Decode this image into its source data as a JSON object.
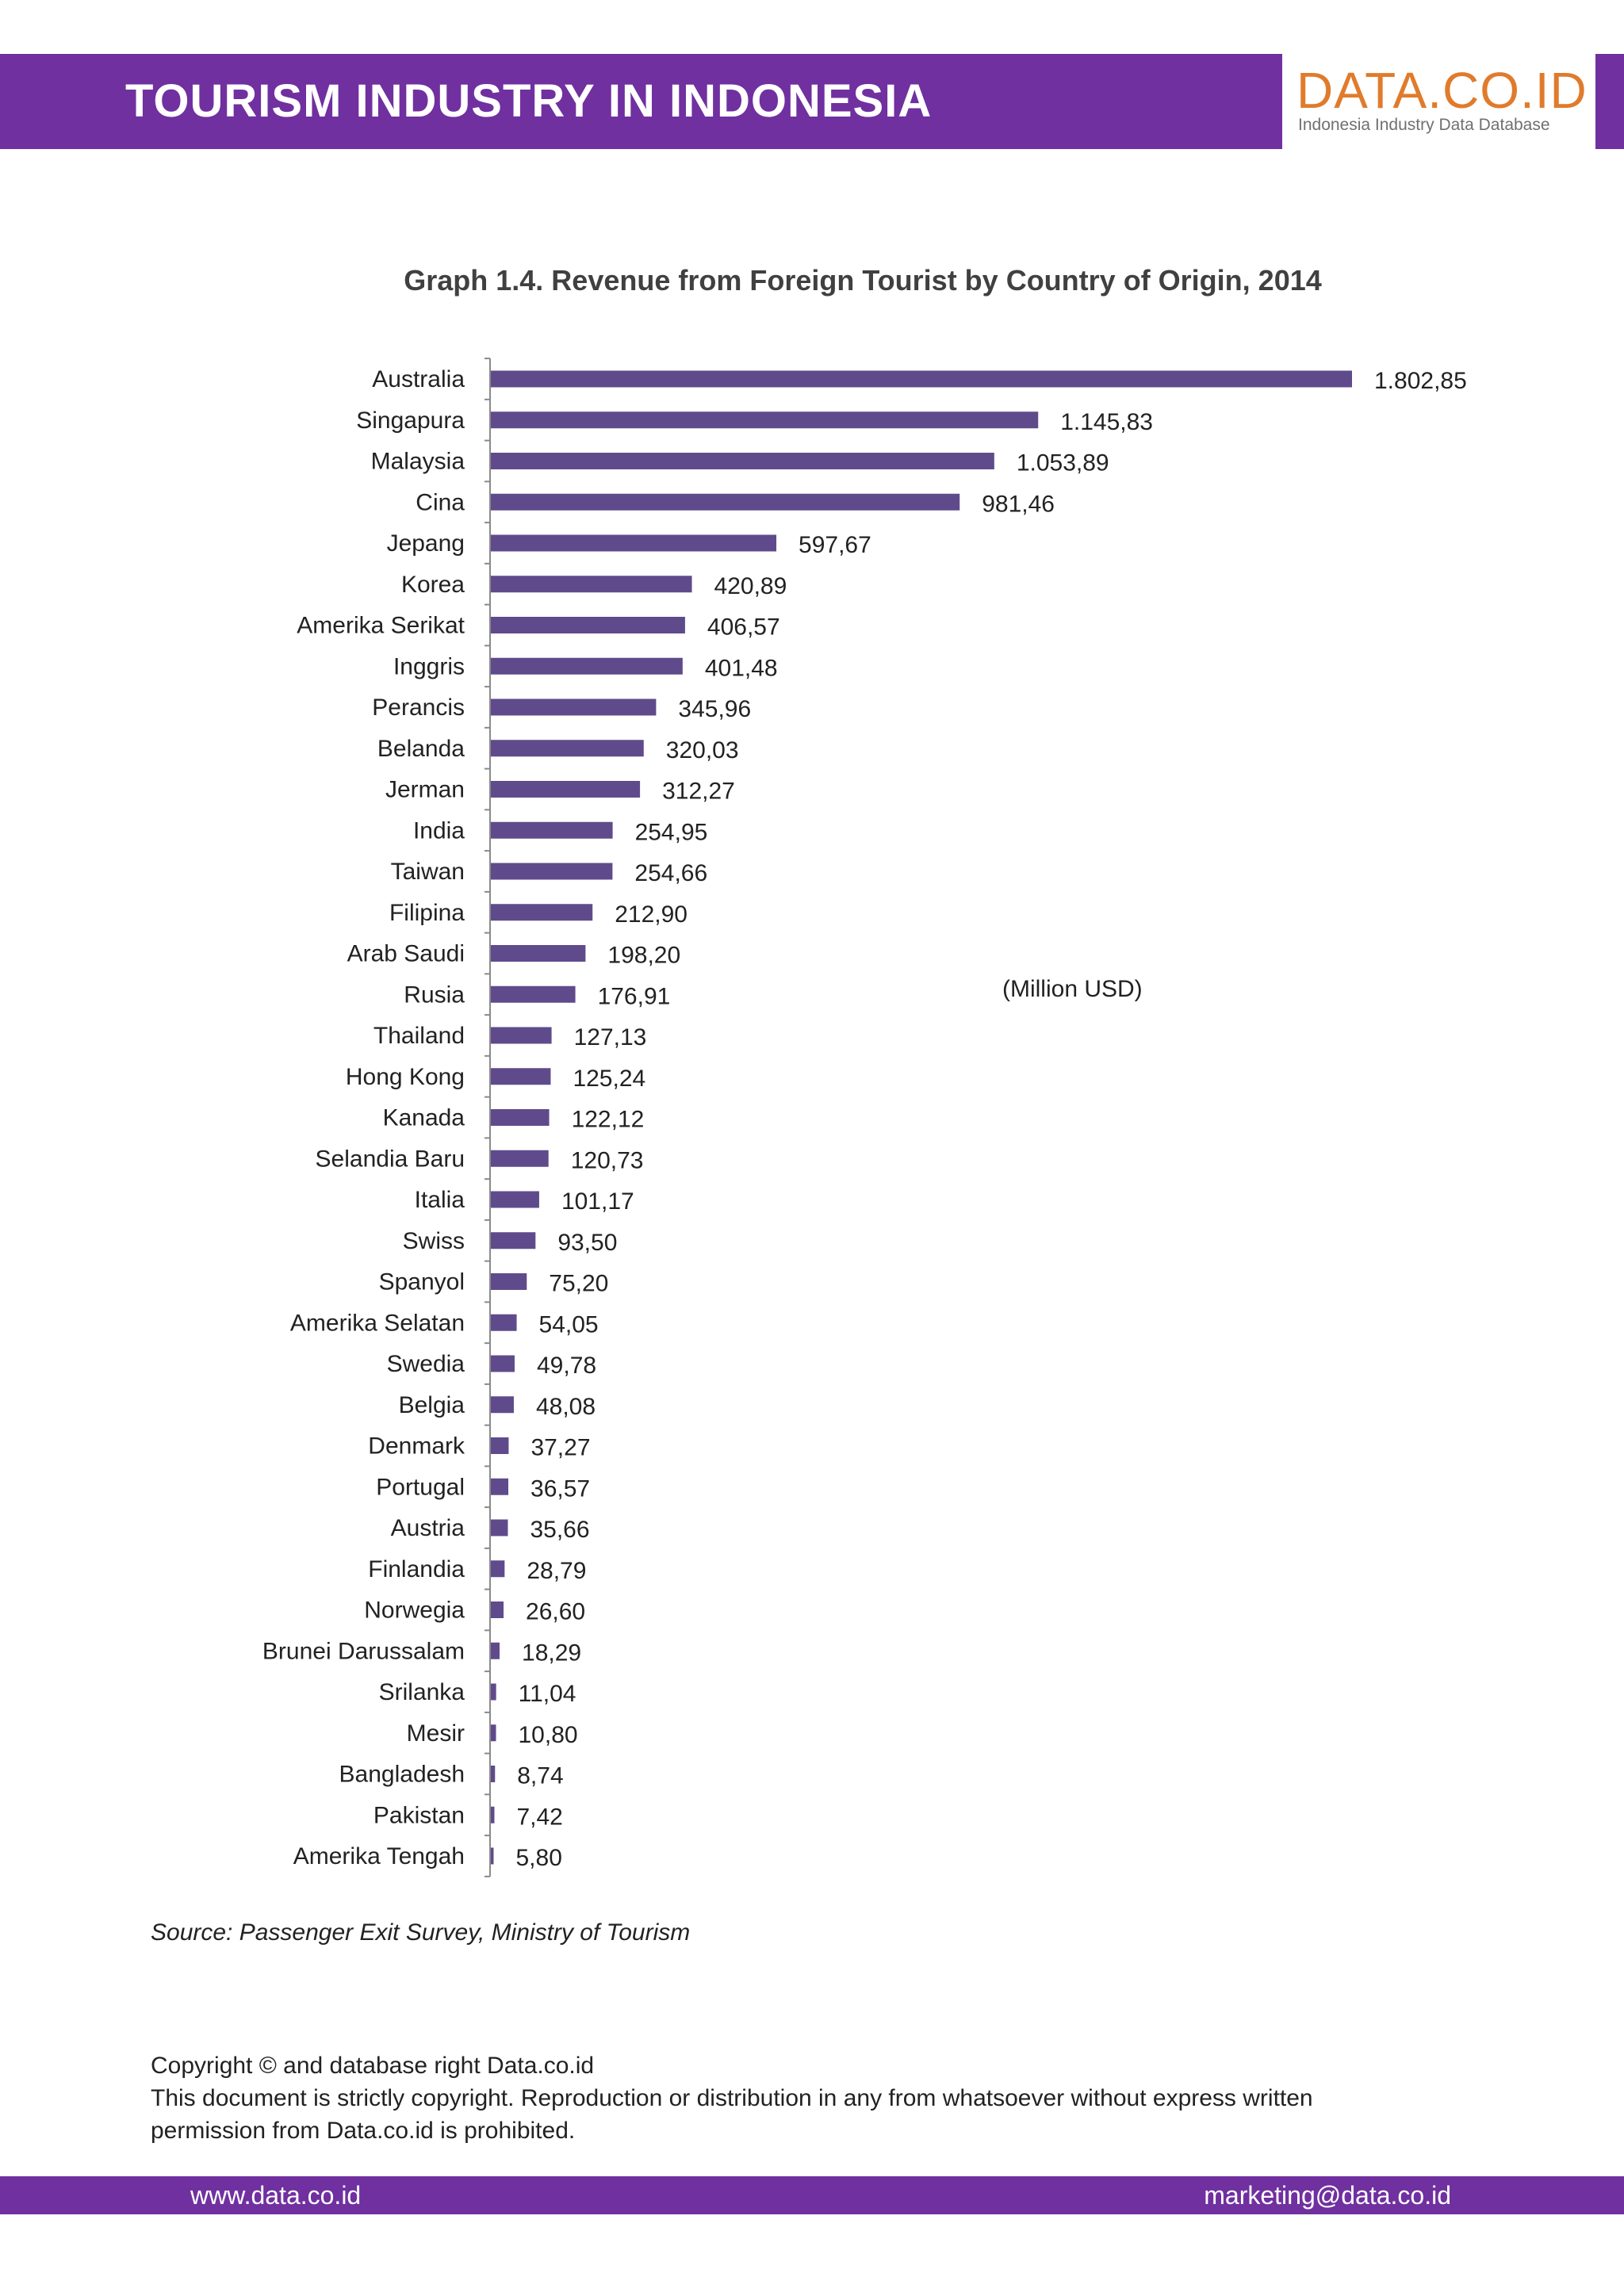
{
  "header": {
    "title": "TOURISM INDUSTRY IN INDONESIA",
    "logo_main": "DATA.CO.ID",
    "logo_sub": "Indonesia Industry Data Database"
  },
  "colors": {
    "brand_purple": "#7030a0",
    "logo_orange": "#e07b2c",
    "bar_color": "#5f4b8b"
  },
  "chart_data": {
    "type": "bar",
    "orientation": "horizontal",
    "title": "Graph 1.4. Revenue from Foreign Tourist by Country of Origin,  2014",
    "unit": "(Million USD)",
    "categories": [
      "Australia",
      "Singapura",
      "Malaysia",
      "Cina",
      "Jepang",
      "Korea",
      "Amerika Serikat",
      "Inggris",
      "Perancis",
      "Belanda",
      "Jerman",
      "India",
      "Taiwan",
      "Filipina",
      "Arab Saudi",
      "Rusia",
      "Thailand",
      "Hong Kong",
      "Kanada",
      "Selandia Baru",
      "Italia",
      "Swiss",
      "Spanyol",
      "Amerika Selatan",
      "Swedia",
      "Belgia",
      "Denmark",
      "Portugal",
      "Austria",
      "Finlandia",
      "Norwegia",
      "Brunei Darussalam",
      "Srilanka",
      "Mesir",
      "Bangladesh",
      "Pakistan",
      "Amerika Tengah"
    ],
    "values": [
      1802.85,
      1145.83,
      1053.89,
      981.46,
      597.67,
      420.89,
      406.57,
      401.48,
      345.96,
      320.03,
      312.27,
      254.95,
      254.66,
      212.9,
      198.2,
      176.91,
      127.13,
      125.24,
      122.12,
      120.73,
      101.17,
      93.5,
      75.2,
      54.05,
      49.78,
      48.08,
      37.27,
      36.57,
      35.66,
      28.79,
      26.6,
      18.29,
      11.04,
      10.8,
      8.74,
      7.42,
      5.8
    ],
    "value_labels": [
      "1.802,85",
      "1.145,83",
      "1.053,89",
      "981,46",
      "597,67",
      "420,89",
      "406,57",
      "401,48",
      "345,96",
      "320,03",
      "312,27",
      "254,95",
      "254,66",
      "212,90",
      "198,20",
      "176,91",
      "127,13",
      "125,24",
      "122,12",
      "120,73",
      "101,17",
      "93,50",
      "75,20",
      "54,05",
      "49,78",
      "48,08",
      "37,27",
      "36,57",
      "35,66",
      "28,79",
      "26,60",
      "18,29",
      "11,04",
      "10,80",
      "8,74",
      "7,42",
      "5,80"
    ],
    "xlabel": "",
    "ylabel": "",
    "xlim": [
      0,
      1802.85
    ],
    "grid": false,
    "legend": "none"
  },
  "source": "Source: Passenger Exit Survey, Ministry of Tourism",
  "copyright": {
    "line1": "Copyright © and database right Data.co.id",
    "line2": "This document is strictly copyright. Reproduction or distribution in any from whatsoever without express written",
    "line3": "permission from Data.co.id is prohibited."
  },
  "footer": {
    "website": "www.data.co.id",
    "email": "marketing@data.co.id"
  }
}
